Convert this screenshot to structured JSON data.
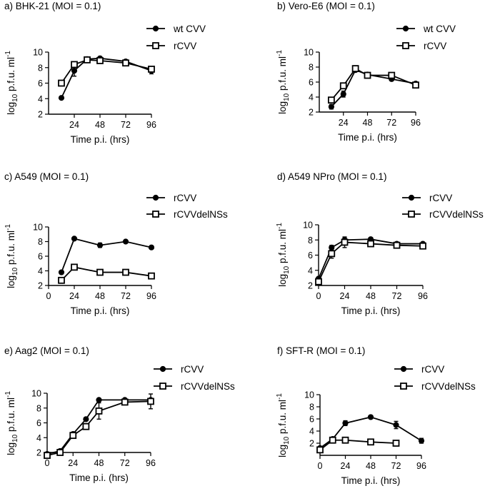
{
  "figure": {
    "ylabel_main": "log",
    "ylabel_sub": "10",
    "ylabel_rest": " p.f.u. ml",
    "ylabel_sup": "-1"
  },
  "chart_data": [
    {
      "type": "line",
      "title": "a) BHK-21 (MOI = 0.1)",
      "xlabel": "Time p.i. (hrs)",
      "xticks": [
        24,
        48,
        72,
        96
      ],
      "xlim": [
        0,
        96
      ],
      "yticks": [
        2,
        4,
        6,
        8,
        10
      ],
      "ylim": [
        2,
        10
      ],
      "series": [
        {
          "name": "wt CVV",
          "marker": "filled-circle",
          "x": [
            12,
            24,
            36,
            48,
            72,
            96
          ],
          "y": [
            4.1,
            7.6,
            9.1,
            9.2,
            8.8,
            7.6
          ],
          "err": [
            0.1,
            0.7,
            0.1,
            0.2,
            0.2,
            0.4
          ]
        },
        {
          "name": "rCVV",
          "marker": "open-square",
          "x": [
            12,
            24,
            36,
            48,
            72,
            96
          ],
          "y": [
            6.0,
            8.4,
            9.0,
            8.9,
            8.6,
            7.8
          ],
          "err": [
            0.1,
            0.1,
            0.1,
            0.1,
            0.2,
            0.1
          ]
        }
      ]
    },
    {
      "type": "line",
      "title": "b) Vero-E6 (MOI = 0.1)",
      "xlabel": "Time p.i. (hrs)",
      "xticks": [
        24,
        48,
        72,
        96
      ],
      "xlim": [
        0,
        96
      ],
      "yticks": [
        2,
        4,
        6,
        8,
        10
      ],
      "ylim": [
        2,
        10
      ],
      "series": [
        {
          "name": "wt CVV",
          "marker": "filled-circle",
          "x": [
            12,
            24,
            36,
            48,
            72,
            96
          ],
          "y": [
            2.7,
            4.4,
            7.6,
            7.0,
            6.4,
            5.8
          ],
          "err": [
            0.3,
            0.4,
            0.2,
            0.2,
            0.2,
            0.2
          ]
        },
        {
          "name": "rCVV",
          "marker": "open-square",
          "x": [
            12,
            24,
            36,
            48,
            72,
            96
          ],
          "y": [
            3.6,
            5.5,
            7.8,
            6.9,
            6.9,
            5.6
          ],
          "err": [
            0.1,
            0.1,
            0.2,
            0.1,
            0.1,
            0.2
          ]
        }
      ]
    },
    {
      "type": "line",
      "title": "c) A549 (MOI = 0.1)",
      "xlabel": "Time p.i. (hrs)",
      "xticks": [
        0,
        24,
        48,
        72,
        96
      ],
      "xlim": [
        0,
        96
      ],
      "yticks": [
        2,
        4,
        6,
        8,
        10
      ],
      "ylim": [
        2,
        10
      ],
      "series": [
        {
          "name": "rCVV",
          "marker": "filled-circle",
          "x": [
            12,
            24,
            48,
            72,
            96
          ],
          "y": [
            3.8,
            8.4,
            7.5,
            8.0,
            7.2
          ],
          "err": [
            0.1,
            0.1,
            0.3,
            0.2,
            0.1
          ]
        },
        {
          "name": "rCVVdelNSs",
          "marker": "open-square",
          "x": [
            12,
            24,
            48,
            72,
            96
          ],
          "y": [
            2.7,
            4.5,
            3.8,
            3.8,
            3.3
          ],
          "err": [
            0.1,
            0.2,
            0.3,
            0.2,
            0.3
          ]
        }
      ]
    },
    {
      "type": "line",
      "title": "d) A549 NPro (MOI = 0.1)",
      "xlabel": "Time p.i. (hrs)",
      "xticks": [
        0,
        24,
        48,
        72,
        96
      ],
      "xlim": [
        0,
        96
      ],
      "yticks": [
        2,
        4,
        6,
        8,
        10
      ],
      "ylim": [
        2,
        10
      ],
      "series": [
        {
          "name": "rCVV",
          "marker": "filled-circle",
          "x": [
            0,
            12,
            24,
            48,
            72,
            96
          ],
          "y": [
            2.9,
            7.0,
            8.0,
            8.1,
            7.5,
            7.5
          ],
          "err": [
            0.2,
            0.3,
            0.3,
            0.1,
            0.2,
            0.1
          ]
        },
        {
          "name": "rCVVdelNSs",
          "marker": "open-square",
          "x": [
            0,
            12,
            24,
            48,
            72,
            96
          ],
          "y": [
            2.5,
            6.2,
            7.7,
            7.5,
            7.3,
            7.2
          ],
          "err": [
            0.2,
            0.6,
            0.7,
            0.1,
            0.2,
            0.1
          ]
        }
      ]
    },
    {
      "type": "line",
      "title": "e) Aag2 (MOI = 0.1)",
      "xlabel": "Time p.i. (hrs)",
      "xticks": [
        0,
        24,
        48,
        72,
        96
      ],
      "xlim": [
        0,
        96
      ],
      "yticks": [
        2,
        4,
        6,
        8,
        10
      ],
      "ylim": [
        2,
        10
      ],
      "series": [
        {
          "name": "rCVV",
          "marker": "filled-circle",
          "x": [
            0,
            12,
            24,
            36,
            48,
            72,
            96
          ],
          "y": [
            1.8,
            2.2,
            4.5,
            6.5,
            9.1,
            9.1,
            9.1
          ],
          "err": [
            0.1,
            0.1,
            0.2,
            0.2,
            0.1,
            0.1,
            0.1
          ]
        },
        {
          "name": "rCVVdelNSs",
          "marker": "open-square",
          "x": [
            0,
            12,
            24,
            36,
            48,
            72,
            96
          ],
          "y": [
            1.6,
            2.0,
            4.3,
            5.5,
            7.6,
            8.8,
            8.9
          ],
          "err": [
            0.1,
            0.1,
            0.2,
            0.4,
            1.1,
            0.3,
            1.0
          ]
        }
      ]
    },
    {
      "type": "line",
      "title": "f) SFT-R (MOI = 0.1)",
      "xlabel": "Time p.i. (hrs)",
      "xticks": [
        0,
        24,
        48,
        72,
        96
      ],
      "xlim": [
        0,
        96
      ],
      "yticks": [
        2,
        4,
        6,
        8,
        10
      ],
      "ylim": [
        0,
        10
      ],
      "series": [
        {
          "name": "rCVV",
          "marker": "filled-circle",
          "x": [
            0,
            12,
            24,
            48,
            72,
            96
          ],
          "y": [
            1.2,
            2.7,
            5.3,
            6.3,
            5.0,
            2.4
          ],
          "err": [
            0.2,
            0.2,
            0.4,
            0.1,
            0.6,
            0.4
          ]
        },
        {
          "name": "rCVVdelNSs",
          "marker": "open-square",
          "x": [
            0,
            12,
            24,
            48,
            72
          ],
          "y": [
            0.9,
            2.5,
            2.5,
            2.2,
            2.0
          ],
          "err": [
            0.1,
            0.1,
            0.1,
            0.1,
            0.1
          ]
        }
      ]
    }
  ]
}
